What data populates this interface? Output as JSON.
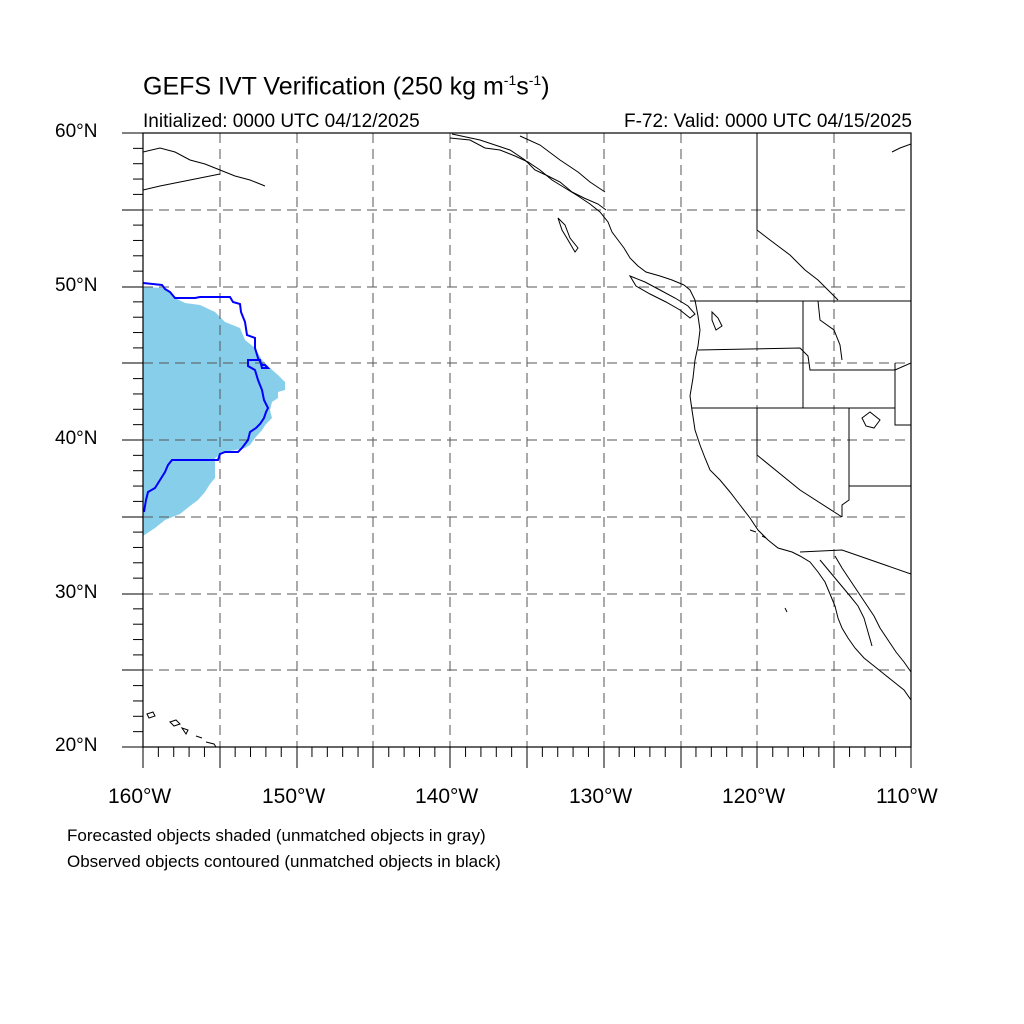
{
  "title": {
    "main": "GEFS IVT Verification (250 kg m",
    "exp1": "-1",
    "mid": "s",
    "exp2": "-1",
    "close": ")"
  },
  "initialized": "Initialized: 0000 UTC 04/12/2025",
  "valid": "F-72: Valid: 0000 UTC 04/15/2025",
  "lat_labels": [
    "60°N",
    "50°N",
    "40°N",
    "30°N",
    "20°N"
  ],
  "lon_labels": [
    "160°W",
    "150°W",
    "140°W",
    "130°W",
    "120°W",
    "110°W"
  ],
  "notes": [
    "Forecasted objects shaded (unmatched objects in gray)",
    "Observed objects contoured (unmatched objects in black)"
  ],
  "map": {
    "extent": {
      "lon": [
        -160,
        -110
      ],
      "lat": [
        20,
        60
      ]
    },
    "grid_spacing_deg": 5,
    "forecast_fill_color": "#87ceeb",
    "observed_contour_color": "#0000ff",
    "coastline_color": "#000000"
  }
}
